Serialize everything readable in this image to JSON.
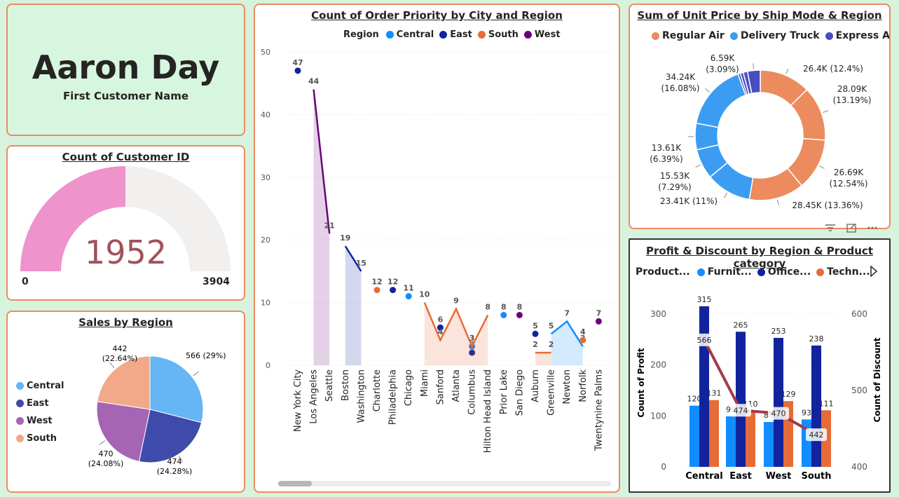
{
  "kpi": {
    "value": "Aaron Day",
    "label": "First Customer Name"
  },
  "gauge": {
    "title": "Count of Customer ID",
    "value_label": "1952",
    "min_label": "0",
    "max_label": "3904",
    "value": 1952,
    "max": 3904,
    "fill_color": "#ee93cc",
    "track_color": "#f2f0ef",
    "value_color": "#a0525a"
  },
  "sales_region": {
    "title": "Sales by Region",
    "legend": [
      {
        "name": "Central",
        "color": "#66b5f5"
      },
      {
        "name": "East",
        "color": "#3e4bab"
      },
      {
        "name": "West",
        "color": "#a565b4"
      },
      {
        "name": "South",
        "color": "#f1a98a"
      }
    ]
  },
  "city_chart": {
    "title": "Count of Order Priority by City and Region",
    "legend_title": "Region",
    "legend": [
      {
        "name": "Central",
        "color": "#118dff"
      },
      {
        "name": "East",
        "color": "#12239e"
      },
      {
        "name": "South",
        "color": "#e66c37"
      },
      {
        "name": "West",
        "color": "#6b007b"
      }
    ]
  },
  "ship_mode": {
    "title": "Sum of Unit Price by Ship Mode & Region",
    "legend": [
      {
        "name": "Regular Air",
        "color": "#ec8b5e"
      },
      {
        "name": "Delivery Truck",
        "color": "#3b9cf2"
      },
      {
        "name": "Express Air",
        "color": "#4a4dc0"
      }
    ]
  },
  "profit": {
    "title": "Profit & Discount by Region & Product category",
    "legend_title": "Product...",
    "legend": [
      {
        "name": "Furnit...",
        "color": "#118dff"
      },
      {
        "name": "Office...",
        "color": "#12239e"
      },
      {
        "name": "Techn...",
        "color": "#e66c37"
      }
    ],
    "line_color": "#a33a4a"
  },
  "toolbar": {
    "filter_icon": "filter-icon",
    "focus_icon": "focus-mode-icon",
    "more_icon": "more-options-icon"
  },
  "chart_data": [
    {
      "type": "pie",
      "title": "Sales by Region",
      "slices": [
        {
          "label": "Central",
          "value": 566,
          "pct": "29%",
          "text": "566 (29%)"
        },
        {
          "label": "East",
          "value": 474,
          "pct": "24.28%",
          "text": "474 (24.28%)"
        },
        {
          "label": "West",
          "value": 470,
          "pct": "24.08%",
          "text": "470 (24.08%)"
        },
        {
          "label": "South",
          "value": 442,
          "pct": "22.64%",
          "text": "442 (22.64%)"
        }
      ]
    },
    {
      "type": "line",
      "title": "Count of Order Priority by City and Region",
      "ylim": [
        0,
        50
      ],
      "yticks": [
        0,
        10,
        20,
        30,
        40,
        50
      ],
      "categories": [
        "New York City",
        "Los Angeles",
        "Seattle",
        "Boston",
        "Washington",
        "Charlotte",
        "Philadelphia",
        "Chicago",
        "Miami",
        "Sanford",
        "Atlanta",
        "Columbus",
        "Hilton Head Island",
        "Prior Lake",
        "San Diego",
        "Auburn",
        "Greenville",
        "Newton",
        "Norfolk",
        "Twentynine Palms"
      ],
      "series": [
        {
          "name": "Central",
          "values": [
            null,
            null,
            null,
            null,
            null,
            null,
            null,
            11,
            null,
            null,
            null,
            3,
            null,
            8,
            null,
            null,
            5,
            7,
            3,
            null
          ]
        },
        {
          "name": "East",
          "values": [
            47,
            null,
            null,
            19,
            15,
            null,
            12,
            null,
            null,
            6,
            null,
            2,
            null,
            null,
            null,
            5,
            null,
            null,
            null,
            null
          ]
        },
        {
          "name": "South",
          "values": [
            null,
            null,
            null,
            null,
            null,
            12,
            null,
            null,
            10,
            4,
            9,
            3,
            8,
            null,
            null,
            2,
            2,
            null,
            4,
            null
          ]
        },
        {
          "name": "West",
          "values": [
            null,
            44,
            21,
            null,
            null,
            null,
            null,
            null,
            null,
            null,
            null,
            null,
            null,
            null,
            8,
            null,
            null,
            null,
            null,
            7
          ]
        }
      ]
    },
    {
      "type": "pie",
      "title": "Sum of Unit Price by Ship Mode & Region",
      "slices": [
        {
          "label": "Regular Air",
          "value": 26.4,
          "text": "26.4K (12.4%)"
        },
        {
          "label": "Regular Air",
          "value": 28.09,
          "text": "28.09K (13.19%)"
        },
        {
          "label": "Regular Air",
          "value": 26.69,
          "text": "26.69K (12.54%)"
        },
        {
          "label": "Regular Air",
          "value": 28.45,
          "text": "28.45K (13.36%)"
        },
        {
          "label": "Delivery Truck",
          "value": 23.41,
          "text": "23.41K (11%)"
        },
        {
          "label": "Delivery Truck",
          "value": 15.53,
          "text": "15.53K (7.29%)"
        },
        {
          "label": "Delivery Truck",
          "value": 13.61,
          "text": "13.61K (6.39%)"
        },
        {
          "label": "Delivery Truck",
          "value": 34.24,
          "text": "34.24K (16.08%)"
        },
        {
          "label": "Express Air",
          "value": 1.2,
          "text": ""
        },
        {
          "label": "Express Air",
          "value": 1.6,
          "text": ""
        },
        {
          "label": "Express Air",
          "value": 2.2,
          "text": ""
        },
        {
          "label": "Express Air",
          "value": 6.59,
          "text": "6.59K (3.09%)"
        }
      ]
    },
    {
      "type": "bar",
      "title": "Profit & Discount by Region & Product category",
      "categories": [
        "Central",
        "East",
        "West",
        "South"
      ],
      "ylabel": "Count of Profit",
      "y2label": "Count of Discount",
      "ylim": [
        0,
        330
      ],
      "yticks": [
        0,
        100,
        200,
        300
      ],
      "y2lim": [
        400,
        620
      ],
      "y2ticks": [
        400,
        500,
        600
      ],
      "series": [
        {
          "name": "Furnit...",
          "values": [
            120,
            99,
            88,
            93
          ]
        },
        {
          "name": "Office...",
          "values": [
            315,
            265,
            253,
            238
          ]
        },
        {
          "name": "Techn...",
          "values": [
            131,
            110,
            129,
            111
          ]
        }
      ],
      "line": {
        "name": "Count of Discount",
        "values": [
          566,
          474,
          470,
          442
        ]
      }
    }
  ]
}
